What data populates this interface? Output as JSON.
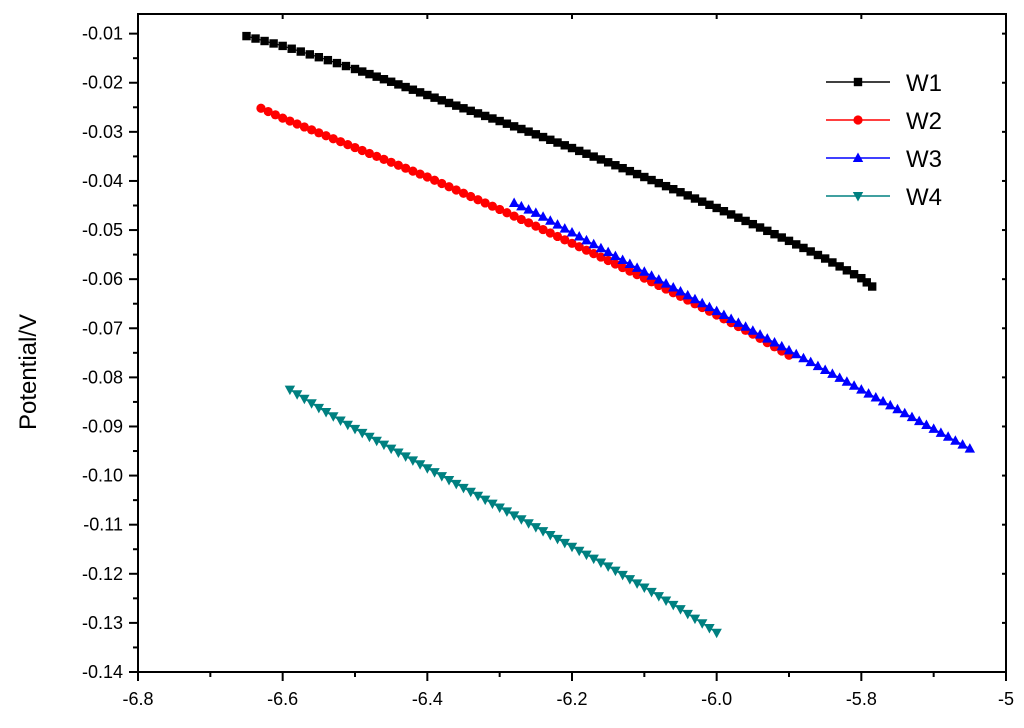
{
  "chart_data": {
    "type": "line",
    "title": "",
    "xlabel": "",
    "ylabel": "Potential/V",
    "xlim": [
      -6.8,
      -5.6
    ],
    "ylim": [
      -0.14,
      -0.006
    ],
    "xticks": [
      "-6.8",
      "-6.6",
      "-6.4",
      "-6.2",
      "-6.0",
      "-5.8",
      "-5"
    ],
    "yticks": [
      "-0.01",
      "-0.02",
      "-0.03",
      "-0.04",
      "-0.05",
      "-0.06",
      "-0.07",
      "-0.08",
      "-0.09",
      "-0.10",
      "-0.11",
      "-0.12",
      "-0.13",
      "-0.14"
    ],
    "grid": false,
    "legend_position": "top-right",
    "series": [
      {
        "name": "W1",
        "color": "#000000",
        "marker": "square",
        "x": [
          -6.65,
          -6.6,
          -6.55,
          -6.5,
          -6.45,
          -6.4,
          -6.35,
          -6.3,
          -6.25,
          -6.2,
          -6.15,
          -6.1,
          -6.05,
          -6.0,
          -5.95,
          -5.9,
          -5.85,
          -5.8,
          -5.785
        ],
        "y": [
          -0.0105,
          -0.0125,
          -0.0148,
          -0.0172,
          -0.0198,
          -0.0225,
          -0.0252,
          -0.0278,
          -0.0305,
          -0.0333,
          -0.0362,
          -0.0392,
          -0.0423,
          -0.0455,
          -0.0488,
          -0.0522,
          -0.0558,
          -0.0598,
          -0.0615
        ]
      },
      {
        "name": "W2",
        "color": "#ff0000",
        "marker": "circle",
        "x": [
          -6.63,
          -6.6,
          -6.55,
          -6.5,
          -6.45,
          -6.4,
          -6.35,
          -6.3,
          -6.25,
          -6.2,
          -6.15,
          -6.1,
          -6.05,
          -6.0,
          -5.95,
          -5.9
        ],
        "y": [
          -0.0252,
          -0.0272,
          -0.0302,
          -0.0332,
          -0.0362,
          -0.0392,
          -0.0425,
          -0.0458,
          -0.0492,
          -0.0527,
          -0.0562,
          -0.0598,
          -0.0635,
          -0.0673,
          -0.0712,
          -0.0755
        ]
      },
      {
        "name": "W3",
        "color": "#0000ff",
        "marker": "triangle-up",
        "x": [
          -6.28,
          -6.25,
          -6.2,
          -6.15,
          -6.1,
          -6.05,
          -6.0,
          -5.95,
          -5.9,
          -5.85,
          -5.8,
          -5.75,
          -5.7,
          -5.65
        ],
        "y": [
          -0.0445,
          -0.0465,
          -0.0505,
          -0.0545,
          -0.0585,
          -0.0625,
          -0.0665,
          -0.0705,
          -0.0745,
          -0.0785,
          -0.0825,
          -0.0865,
          -0.0905,
          -0.0945
        ]
      },
      {
        "name": "W4",
        "color": "#008080",
        "marker": "triangle-down",
        "x": [
          -6.59,
          -6.55,
          -6.5,
          -6.45,
          -6.4,
          -6.35,
          -6.3,
          -6.25,
          -6.2,
          -6.15,
          -6.1,
          -6.05,
          -6.0
        ],
        "y": [
          -0.0825,
          -0.0862,
          -0.0905,
          -0.0945,
          -0.0985,
          -0.1025,
          -0.1065,
          -0.1105,
          -0.1145,
          -0.1185,
          -0.1228,
          -0.1272,
          -0.132
        ]
      }
    ]
  }
}
